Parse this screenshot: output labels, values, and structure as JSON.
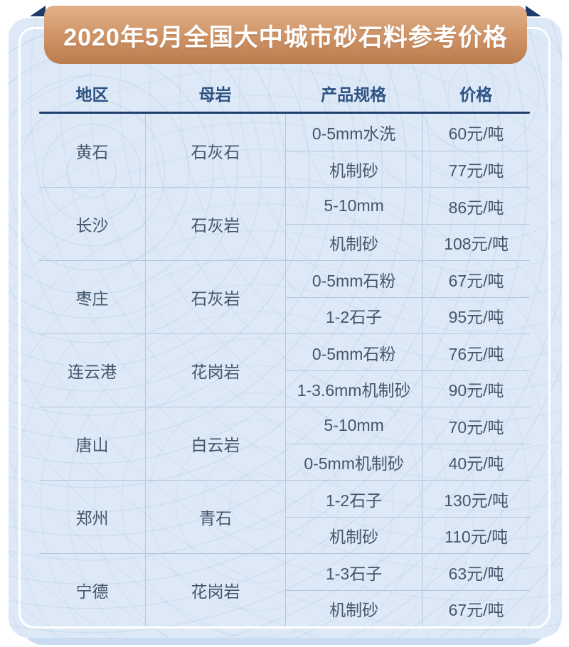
{
  "page": {
    "title": "2020年5月全国大中城市砂石料参考价格"
  },
  "colors": {
    "banner_top": "#e3b189",
    "banner_bottom": "#bb7c4e",
    "ribbon_fold": "#1c3a6b",
    "card_background": "#dde9f6",
    "header_text": "#2d5284",
    "header_rule": "#1f3d6d",
    "divider": "#b4c8dd",
    "body_text": "#43566c"
  },
  "table": {
    "headers": [
      "地区",
      "母岩",
      "产品规格",
      "价格"
    ],
    "rows": [
      {
        "region": "黄石",
        "rock": "石灰石",
        "products": [
          {
            "spec": "0-5mm水洗",
            "price": "60元/吨"
          },
          {
            "spec": "机制砂",
            "price": "77元/吨"
          }
        ]
      },
      {
        "region": "长沙",
        "rock": "石灰岩",
        "products": [
          {
            "spec": "5-10mm",
            "price": "86元/吨"
          },
          {
            "spec": "机制砂",
            "price": "108元/吨"
          }
        ]
      },
      {
        "region": "枣庄",
        "rock": "石灰岩",
        "products": [
          {
            "spec": "0-5mm石粉",
            "price": "67元/吨"
          },
          {
            "spec": "1-2石子",
            "price": "95元/吨"
          }
        ]
      },
      {
        "region": "连云港",
        "rock": "花岗岩",
        "products": [
          {
            "spec": "0-5mm石粉",
            "price": "76元/吨"
          },
          {
            "spec": "1-3.6mm机制砂",
            "price": "90元/吨"
          }
        ]
      },
      {
        "region": "唐山",
        "rock": "白云岩",
        "products": [
          {
            "spec": "5-10mm",
            "price": "70元/吨"
          },
          {
            "spec": "0-5mm机制砂",
            "price": "40元/吨"
          }
        ]
      },
      {
        "region": "郑州",
        "rock": "青石",
        "products": [
          {
            "spec": "1-2石子",
            "price": "130元/吨"
          },
          {
            "spec": "机制砂",
            "price": "110元/吨"
          }
        ]
      },
      {
        "region": "宁德",
        "rock": "花岗岩",
        "products": [
          {
            "spec": "1-3石子",
            "price": "63元/吨"
          },
          {
            "spec": "机制砂",
            "price": "67元/吨"
          }
        ]
      }
    ]
  },
  "chart_data": {
    "type": "table",
    "title": "2020年5月全国大中城市砂石料参考价格",
    "columns": [
      "地区",
      "母岩",
      "产品规格",
      "价格"
    ],
    "rows": [
      [
        "黄石",
        "石灰石",
        "0-5mm水洗",
        "60元/吨"
      ],
      [
        "黄石",
        "石灰石",
        "机制砂",
        "77元/吨"
      ],
      [
        "长沙",
        "石灰岩",
        "5-10mm",
        "86元/吨"
      ],
      [
        "长沙",
        "石灰岩",
        "机制砂",
        "108元/吨"
      ],
      [
        "枣庄",
        "石灰岩",
        "0-5mm石粉",
        "67元/吨"
      ],
      [
        "枣庄",
        "石灰岩",
        "1-2石子",
        "95元/吨"
      ],
      [
        "连云港",
        "花岗岩",
        "0-5mm石粉",
        "76元/吨"
      ],
      [
        "连云港",
        "花岗岩",
        "1-3.6mm机制砂",
        "90元/吨"
      ],
      [
        "唐山",
        "白云岩",
        "5-10mm",
        "70元/吨"
      ],
      [
        "唐山",
        "白云岩",
        "0-5mm机制砂",
        "40元/吨"
      ],
      [
        "郑州",
        "青石",
        "1-2石子",
        "130元/吨"
      ],
      [
        "郑州",
        "青石",
        "机制砂",
        "110元/吨"
      ],
      [
        "宁德",
        "花岗岩",
        "1-3石子",
        "63元/吨"
      ],
      [
        "宁德",
        "花岗岩",
        "机制砂",
        "67元/吨"
      ]
    ]
  }
}
